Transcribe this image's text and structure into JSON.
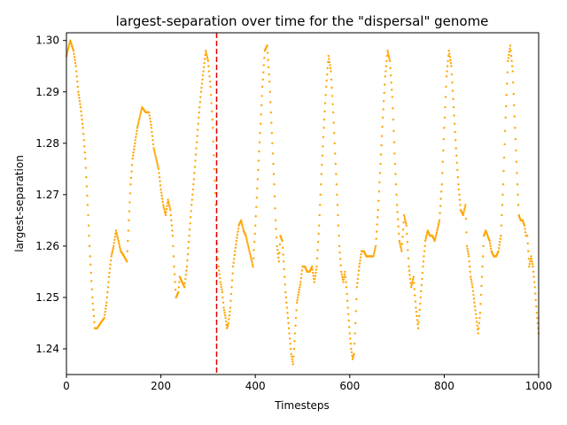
{
  "chart_data": {
    "type": "scatter",
    "title": "largest-separation over time for the \"dispersal\" genome",
    "xlabel": "Timesteps",
    "ylabel": "largest-separation",
    "xlim": [
      0,
      1000
    ],
    "ylim": [
      1.235,
      1.3015
    ],
    "x_ticks": [
      0,
      200,
      400,
      600,
      800,
      1000
    ],
    "y_ticks": [
      1.24,
      1.25,
      1.26,
      1.27,
      1.28,
      1.29,
      1.3
    ],
    "y_tick_labels": [
      "1.24",
      "1.25",
      "1.26",
      "1.27",
      "1.28",
      "1.29",
      "1.30"
    ],
    "grid": false,
    "legend": "none",
    "marker_color": "#FFA500",
    "marker_size": 1.2,
    "vline": {
      "x": 318,
      "color": "#E00000",
      "style": "dashed"
    },
    "series": [
      {
        "points": [
          [
            0,
            1.297
          ],
          [
            8,
            1.3
          ],
          [
            15,
            1.298
          ],
          [
            20,
            1.295
          ],
          [
            25,
            1.29
          ],
          [
            30,
            1.287
          ],
          [
            35,
            1.283
          ],
          [
            40,
            1.277
          ],
          [
            45,
            1.268
          ],
          [
            50,
            1.258
          ],
          [
            55,
            1.25
          ],
          [
            60,
            1.244
          ],
          [
            65,
            1.244
          ],
          [
            72,
            1.245
          ],
          [
            80,
            1.246
          ],
          [
            85,
            1.249
          ],
          [
            90,
            1.254
          ],
          [
            95,
            1.258
          ],
          [
            100,
            1.26
          ],
          [
            105,
            1.263
          ],
          [
            110,
            1.261
          ],
          [
            115,
            1.259
          ],
          [
            122,
            1.258
          ],
          [
            128,
            1.257
          ],
          [
            132,
            1.265
          ],
          [
            136,
            1.272
          ],
          [
            140,
            1.277
          ],
          [
            145,
            1.28
          ],
          [
            150,
            1.283
          ],
          [
            155,
            1.285
          ],
          [
            160,
            1.287
          ],
          [
            168,
            1.286
          ],
          [
            175,
            1.286
          ],
          [
            180,
            1.283
          ],
          [
            185,
            1.279
          ],
          [
            190,
            1.277
          ],
          [
            195,
            1.275
          ],
          [
            200,
            1.271
          ],
          [
            205,
            1.268
          ],
          [
            210,
            1.266
          ],
          [
            215,
            1.269
          ],
          [
            220,
            1.267
          ],
          [
            225,
            1.262
          ],
          [
            228,
            1.256
          ],
          [
            232,
            1.25
          ],
          [
            237,
            1.251
          ],
          [
            240,
            1.254
          ],
          [
            245,
            1.253
          ],
          [
            250,
            1.252
          ],
          [
            255,
            1.256
          ],
          [
            260,
            1.262
          ],
          [
            265,
            1.268
          ],
          [
            270,
            1.273
          ],
          [
            275,
            1.279
          ],
          [
            280,
            1.285
          ],
          [
            285,
            1.29
          ],
          [
            290,
            1.294
          ],
          [
            295,
            1.298
          ],
          [
            300,
            1.296
          ],
          [
            305,
            1.291
          ],
          [
            310,
            1.283
          ],
          [
            313,
            1.275
          ],
          [
            316,
            1.268
          ],
          [
            318,
            1.262
          ],
          [
            322,
            1.256
          ],
          [
            326,
            1.253
          ],
          [
            330,
            1.251
          ],
          [
            333,
            1.248
          ],
          [
            337,
            1.246
          ],
          [
            340,
            1.244
          ],
          [
            343,
            1.245
          ],
          [
            347,
            1.248
          ],
          [
            350,
            1.252
          ],
          [
            353,
            1.256
          ],
          [
            357,
            1.259
          ],
          [
            360,
            1.261
          ],
          [
            365,
            1.264
          ],
          [
            370,
            1.265
          ],
          [
            375,
            1.263
          ],
          [
            380,
            1.262
          ],
          [
            385,
            1.26
          ],
          [
            390,
            1.258
          ],
          [
            395,
            1.256
          ],
          [
            400,
            1.264
          ],
          [
            405,
            1.273
          ],
          [
            410,
            1.282
          ],
          [
            415,
            1.291
          ],
          [
            420,
            1.298
          ],
          [
            425,
            1.299
          ],
          [
            430,
            1.292
          ],
          [
            435,
            1.282
          ],
          [
            440,
            1.272
          ],
          [
            443,
            1.265
          ],
          [
            446,
            1.26
          ],
          [
            450,
            1.257
          ],
          [
            453,
            1.262
          ],
          [
            457,
            1.261
          ],
          [
            460,
            1.257
          ],
          [
            464,
            1.251
          ],
          [
            468,
            1.247
          ],
          [
            472,
            1.243
          ],
          [
            476,
            1.239
          ],
          [
            480,
            1.237
          ],
          [
            484,
            1.243
          ],
          [
            488,
            1.249
          ],
          [
            492,
            1.251
          ],
          [
            496,
            1.253
          ],
          [
            500,
            1.256
          ],
          [
            505,
            1.256
          ],
          [
            510,
            1.255
          ],
          [
            515,
            1.255
          ],
          [
            520,
            1.256
          ],
          [
            525,
            1.253
          ],
          [
            530,
            1.256
          ],
          [
            535,
            1.264
          ],
          [
            540,
            1.274
          ],
          [
            545,
            1.283
          ],
          [
            550,
            1.291
          ],
          [
            555,
            1.297
          ],
          [
            560,
            1.294
          ],
          [
            565,
            1.286
          ],
          [
            570,
            1.276
          ],
          [
            575,
            1.266
          ],
          [
            578,
            1.26
          ],
          [
            582,
            1.255
          ],
          [
            586,
            1.253
          ],
          [
            590,
            1.255
          ],
          [
            593,
            1.252
          ],
          [
            596,
            1.248
          ],
          [
            600,
            1.243
          ],
          [
            603,
            1.24
          ],
          [
            606,
            1.238
          ],
          [
            609,
            1.239
          ],
          [
            612,
            1.245
          ],
          [
            615,
            1.252
          ],
          [
            620,
            1.256
          ],
          [
            625,
            1.259
          ],
          [
            630,
            1.259
          ],
          [
            635,
            1.258
          ],
          [
            640,
            1.258
          ],
          [
            645,
            1.258
          ],
          [
            650,
            1.258
          ],
          [
            655,
            1.26
          ],
          [
            660,
            1.267
          ],
          [
            665,
            1.276
          ],
          [
            670,
            1.285
          ],
          [
            675,
            1.293
          ],
          [
            680,
            1.298
          ],
          [
            685,
            1.296
          ],
          [
            690,
            1.289
          ],
          [
            695,
            1.278
          ],
          [
            700,
            1.268
          ],
          [
            705,
            1.261
          ],
          [
            710,
            1.259
          ],
          [
            715,
            1.266
          ],
          [
            720,
            1.264
          ],
          [
            725,
            1.256
          ],
          [
            730,
            1.252
          ],
          [
            735,
            1.254
          ],
          [
            740,
            1.248
          ],
          [
            745,
            1.244
          ],
          [
            750,
            1.25
          ],
          [
            755,
            1.256
          ],
          [
            760,
            1.261
          ],
          [
            765,
            1.263
          ],
          [
            770,
            1.262
          ],
          [
            775,
            1.262
          ],
          [
            780,
            1.261
          ],
          [
            785,
            1.263
          ],
          [
            790,
            1.265
          ],
          [
            795,
            1.272
          ],
          [
            800,
            1.283
          ],
          [
            805,
            1.293
          ],
          [
            810,
            1.298
          ],
          [
            815,
            1.295
          ],
          [
            820,
            1.287
          ],
          [
            825,
            1.279
          ],
          [
            830,
            1.272
          ],
          [
            835,
            1.267
          ],
          [
            840,
            1.266
          ],
          [
            845,
            1.268
          ],
          [
            848,
            1.26
          ],
          [
            852,
            1.258
          ],
          [
            856,
            1.254
          ],
          [
            860,
            1.252
          ],
          [
            864,
            1.249
          ],
          [
            868,
            1.246
          ],
          [
            872,
            1.243
          ],
          [
            876,
            1.247
          ],
          [
            880,
            1.254
          ],
          [
            884,
            1.262
          ],
          [
            888,
            1.263
          ],
          [
            892,
            1.262
          ],
          [
            896,
            1.261
          ],
          [
            900,
            1.259
          ],
          [
            905,
            1.258
          ],
          [
            910,
            1.258
          ],
          [
            915,
            1.259
          ],
          [
            920,
            1.262
          ],
          [
            925,
            1.272
          ],
          [
            930,
            1.285
          ],
          [
            935,
            1.296
          ],
          [
            940,
            1.299
          ],
          [
            945,
            1.294
          ],
          [
            950,
            1.283
          ],
          [
            955,
            1.272
          ],
          [
            958,
            1.266
          ],
          [
            962,
            1.265
          ],
          [
            966,
            1.265
          ],
          [
            970,
            1.264
          ],
          [
            973,
            1.262
          ],
          [
            976,
            1.262
          ],
          [
            980,
            1.256
          ],
          [
            984,
            1.258
          ],
          [
            988,
            1.256
          ],
          [
            992,
            1.252
          ],
          [
            996,
            1.247
          ],
          [
            1000,
            1.243
          ]
        ]
      }
    ]
  }
}
